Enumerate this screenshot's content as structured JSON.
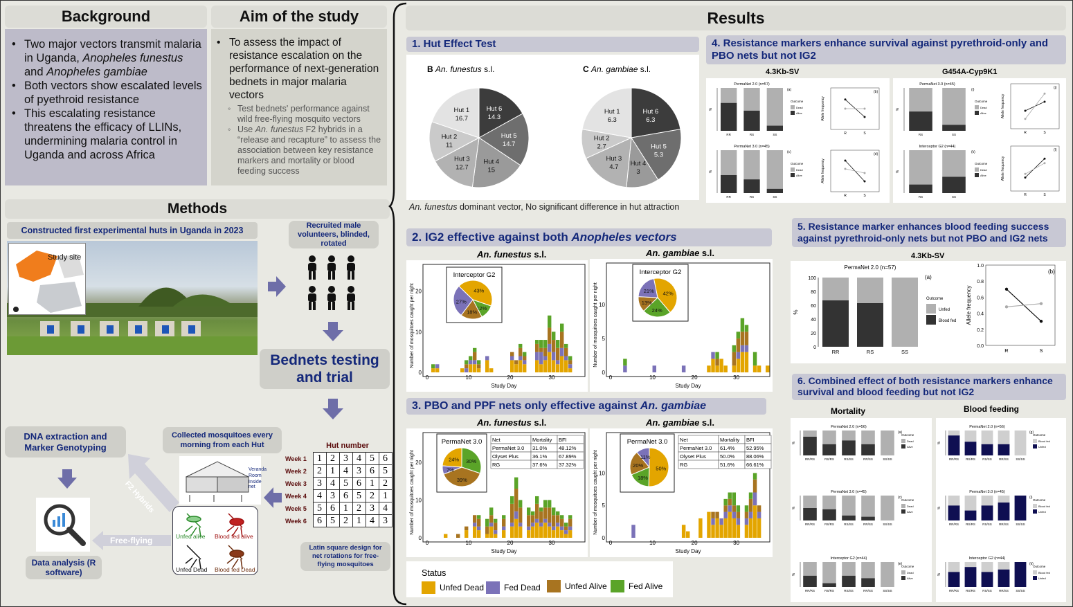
{
  "background": {
    "title": "Background",
    "bullets": [
      "Two major vectors transmit malaria in Uganda, Anopheles funestus and Anopheles gambiae",
      "Both vectors show escalated levels of pyethroid resistance",
      "This escalating resistance threatens the efficacy of LLINs, undermining malaria control in Uganda and across Africa"
    ]
  },
  "aim": {
    "title": "Aim of the study",
    "main": "To assess the impact of resistance escalation on the performance of next-generation bednets in major malaria vectors",
    "subs": [
      "Test bednets' performance against wild free-flying mosquito vectors",
      "Use An. funestus F2 hybrids in a “release and recapture” to assess the association between key resistance markers and mortality or blood feeding success"
    ]
  },
  "methods": {
    "title": "Methods",
    "huts_title": "Constructed first experimental huts in Uganda in 2023",
    "map_label": "Study site",
    "volunteers": "Recruited male volunteers, blinded, rotated",
    "bednets": "Bednets testing and trial",
    "collected": "Collected mosquitoes every morning from each Hut",
    "dna": "DNA extraction and Marker Genotyping",
    "analysis": "Data analysis (R software)",
    "f2": "F2 Hybrids",
    "free": "Free-flying",
    "hut_number": "Hut number",
    "latin": "Latin square design for net rotations for free-flying mosquitoes",
    "hut_parts": [
      "Veranda",
      "Room",
      "Inside net"
    ],
    "mosq_labels": [
      "Unfed alive",
      "Blood fed alive",
      "Unfed Dead",
      "Blood fed Dead"
    ],
    "weeks": [
      "Week 1",
      "Week 2",
      "Week 3",
      "Week 4",
      "Week 5",
      "Week 6"
    ],
    "latin_grid": [
      [
        1,
        2,
        3,
        4,
        5,
        6
      ],
      [
        2,
        1,
        4,
        3,
        6,
        5
      ],
      [
        3,
        4,
        5,
        6,
        1,
        2
      ],
      [
        4,
        3,
        6,
        5,
        2,
        1
      ],
      [
        5,
        6,
        1,
        2,
        3,
        4
      ],
      [
        6,
        5,
        2,
        1,
        4,
        3
      ]
    ]
  },
  "results": {
    "title": "Results",
    "s1": {
      "title": "1. Hut Effect Test",
      "caption": "An. funestus dominant vector, No significant difference in hut attraction"
    },
    "s2": {
      "title": "2. IG2 effective against both Anopheles vectors"
    },
    "s3": {
      "title": "3. PBO and PPF nets only effective against An. gambiae"
    },
    "s4": {
      "title": "4. Resistance markers enhance survival against pyrethroid-only and PBO nets but not IG2",
      "m1": "4.3Kb-SV",
      "m2": "G454A-Cyp9K1"
    },
    "s5": {
      "title": "5. Resistance marker enhances blood feeding success against pyrethroid-only nets but not PBO and IG2 nets",
      "marker": "4.3Kb-SV"
    },
    "s6": {
      "title": "6. Combined effect of both resistance markers enhance survival and blood feeding but not IG2",
      "col1": "Mortality",
      "col2": "Blood feeding"
    },
    "status": {
      "title": "Status",
      "items": [
        "Unfed Dead",
        "Fed Dead",
        "Unfed Alive",
        "Fed Alive"
      ],
      "colors": [
        "#e3a500",
        "#7b72b8",
        "#a87420",
        "#5aa428"
      ]
    }
  },
  "chart_data": [
    {
      "type": "pie",
      "title": "B An. funestus s.l.",
      "categories": [
        "Hut 1",
        "Hut 2",
        "Hut 3",
        "Hut 4",
        "Hut 5",
        "Hut 6"
      ],
      "values": [
        16.7,
        11,
        12.7,
        15,
        14.7,
        14.3
      ]
    },
    {
      "type": "pie",
      "title": "C An. gambiae s.l.",
      "categories": [
        "Hut 1",
        "Hut 2",
        "Hut 3",
        "Hut 4",
        "Hut 5",
        "Hut 6"
      ],
      "values": [
        6.3,
        2.7,
        4.7,
        3,
        5.3,
        6.3
      ]
    },
    {
      "type": "pie",
      "title": "Interceptor G2 (An. funestus s.l.)",
      "values": [
        43,
        12,
        18,
        27
      ],
      "labels": [
        "43%",
        "12%",
        "18%",
        "27%"
      ]
    },
    {
      "type": "pie",
      "title": "Interceptor G2 (An. gambiae s.l.)",
      "values": [
        42,
        24,
        13,
        21
      ],
      "labels": [
        "42%",
        "24%",
        "13%",
        "21%"
      ]
    },
    {
      "type": "pie",
      "title": "PermaNet 3.0 (An. funestus s.l.)",
      "values": [
        24,
        30,
        39,
        7
      ],
      "labels": [
        "24%",
        "30%",
        "39%",
        "7%"
      ]
    },
    {
      "type": "pie",
      "title": "PermaNet 3.0 (An. gambiae s.l.)",
      "values": [
        50,
        18,
        20,
        11
      ],
      "labels": [
        "50%",
        "18%",
        "20%",
        "11%"
      ]
    },
    {
      "type": "table",
      "title": "An. funestus s.l.",
      "header": [
        "Net",
        "Mortality",
        "BFI"
      ],
      "rows": [
        [
          "PermaNet 3.0",
          "31.0%",
          "48.12%"
        ],
        [
          "Olyset Plus",
          "36.1%",
          "67.89%"
        ],
        [
          "RG",
          "37.6%",
          "37.32%"
        ]
      ]
    },
    {
      "type": "table",
      "title": "An. gambiae s.l.",
      "header": [
        "Net",
        "Mortality",
        "BFI"
      ],
      "rows": [
        [
          "PermaNet 3.0",
          "61.4%",
          "52.95%"
        ],
        [
          "Olyset Plus",
          "50.0%",
          "88.06%"
        ],
        [
          "RG",
          "51.6%",
          "66.61%"
        ]
      ]
    },
    {
      "type": "bar",
      "title": "PermaNet 2.0 (n=57)",
      "categories": [
        "RR",
        "RS",
        "SS"
      ],
      "series": [
        {
          "name": "Blood fed",
          "values": [
            67,
            63,
            0
          ]
        },
        {
          "name": "Unfed",
          "values": [
            33,
            37,
            100
          ]
        }
      ],
      "ylabel": "%",
      "ylim": [
        0,
        100
      ]
    },
    {
      "type": "line",
      "xlabel": "",
      "ylabel": "Allele frequency",
      "x": [
        "R",
        "S"
      ],
      "series": [
        {
          "values": [
            0.7,
            0.3
          ]
        },
        {
          "values": [
            0.48,
            0.52
          ]
        }
      ],
      "ylim": [
        0,
        1
      ]
    }
  ],
  "axis": {
    "ylabel": "Number of mosquitoes caught per night",
    "xlabel": "Study Day",
    "xticks": [
      "0",
      "10",
      "20",
      "30"
    ],
    "yticks_f": [
      "0",
      "10",
      "20"
    ],
    "yticks_g": [
      "0",
      "5",
      "10"
    ],
    "s2_titles": [
      "An. funestus s.l.",
      "An. gambiae s.l."
    ],
    "s3_titles": [
      "An. funestus s.l.",
      "An. gambiae s.l."
    ],
    "ig2": "Interceptor G2",
    "pn3": "PermaNet 3.0",
    "small_pn2_57": "PermaNet 2.0 (n=57)",
    "small_pn3_45": "PermaNet 3.0 (n=45)",
    "small_ig2_44": "Interceptor G2 (n=44)",
    "small_pn2_56": "PermaNet 2.0 (n=56)",
    "outcome": "Outcome",
    "dead": "Dead",
    "alive": "Alive",
    "unfed": "Unfed",
    "bloodfed": "Blood fed",
    "allele": "Allele frequency",
    "pct": "%"
  }
}
